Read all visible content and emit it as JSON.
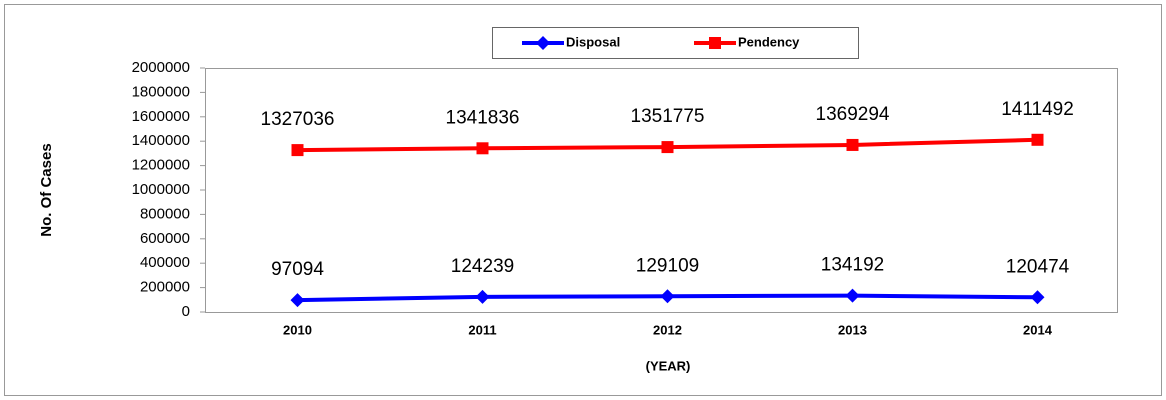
{
  "chart_data": {
    "type": "line",
    "x_label": "(YEAR)",
    "y_label": "No. Of Cases",
    "categories": [
      "2010",
      "2011",
      "2012",
      "2013",
      "2014"
    ],
    "series": [
      {
        "name": "Disposal",
        "color": "#0000ff",
        "marker": "diamond",
        "values": [
          97094,
          124239,
          129109,
          134192,
          120474
        ]
      },
      {
        "name": "Pendency",
        "color": "#ff0000",
        "marker": "square",
        "values": [
          1327036,
          1341836,
          1351775,
          1369294,
          1411492
        ]
      }
    ],
    "ylim": [
      0,
      2000000
    ],
    "yticks": [
      0,
      200000,
      400000,
      600000,
      800000,
      1000000,
      1200000,
      1400000,
      1600000,
      1800000,
      2000000
    ],
    "grid": false,
    "legend": "top"
  }
}
